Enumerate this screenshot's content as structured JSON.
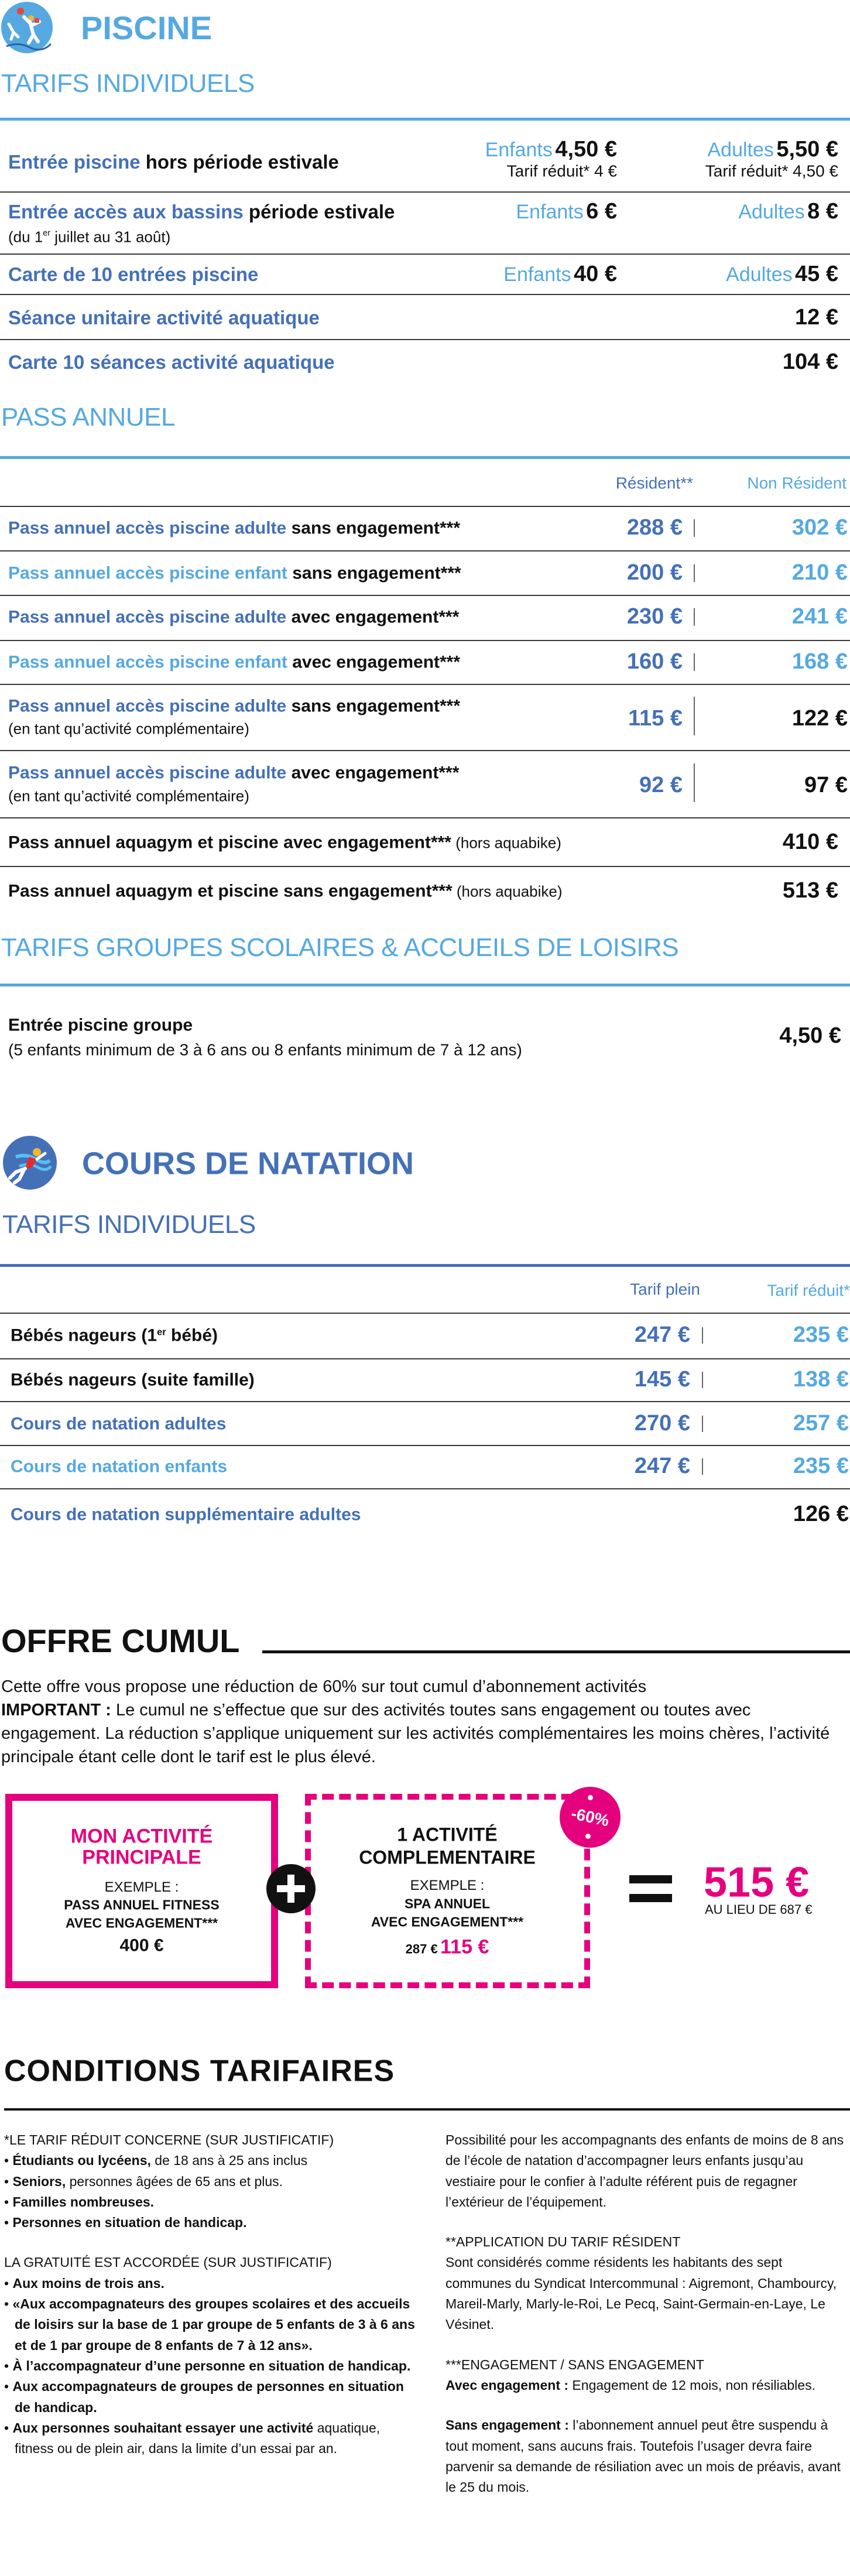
{
  "colors": {
    "dark_blue": "#4470b7",
    "light_blue": "#55a9e0",
    "pink": "#e5007e",
    "text": "#111111"
  },
  "piscine": {
    "icon": "water-polo-player-icon",
    "title": "PISCINE",
    "individuels": {
      "title": "TARIFS INDIVIDUELS",
      "rows": [
        {
          "label_blue": "Entrée piscine",
          "label_black": " hors période estivale",
          "enfants_label": "Enfants",
          "enfants_price": "4,50 €",
          "enfants_reduit": "Tarif réduit* 4 €",
          "adultes_label": "Adultes",
          "adultes_price": "5,50 €",
          "adultes_reduit": "Tarif réduit* 4,50 €"
        },
        {
          "label_blue": "Entrée accès aux bassins",
          "label_black": " période estivale",
          "sub_pre": "(du 1",
          "sub_sup": "er",
          "sub_post": " juillet au 31 août)",
          "enfants_label": "Enfants",
          "enfants_price": "6 €",
          "adultes_label": "Adultes",
          "adultes_price": "8 €"
        },
        {
          "label_blue": "Carte de 10 entrées piscine",
          "enfants_label": "Enfants",
          "enfants_price": "40 €",
          "adultes_label": "Adultes",
          "adultes_price": "45 €"
        },
        {
          "label_blue": "Séance unitaire activité aquatique",
          "price": "12 €"
        },
        {
          "label_blue": "Carte 10 séances activité aquatique",
          "price": "104 €"
        }
      ]
    },
    "pass": {
      "title": "PASS ANNUEL",
      "col_resident": "Résident**",
      "col_non_resident": "Non Résident",
      "rows": [
        {
          "label_blue": "Pass annuel accès piscine adulte",
          "label_black": " sans engagement***",
          "resident": "288 €",
          "non_resident": "302 €"
        },
        {
          "label_blue": "Pass annuel accès piscine enfant",
          "label_black": " sans engagement***",
          "resident": "200 €",
          "non_resident": "210 €"
        },
        {
          "label_blue": "Pass annuel accès piscine adulte",
          "label_black": " avec engagement***",
          "resident": "230 €",
          "non_resident": "241 €"
        },
        {
          "label_blue": "Pass annuel accès piscine enfant",
          "label_black": " avec engagement***",
          "resident": "160 €",
          "non_resident": "168 €"
        },
        {
          "label_blue": "Pass annuel accès piscine adulte",
          "label_black": " sans engagement***",
          "sub": "(en tant qu’activité complémentaire)",
          "resident": "115 €",
          "non_resident": "122 €"
        },
        {
          "label_blue": "Pass annuel accès piscine adulte",
          "label_black": " avec engagement***",
          "sub": "(en tant qu’activité complémentaire)",
          "resident": "92 €",
          "non_resident": "97 €"
        },
        {
          "label_black": "Pass annuel aquagym et piscine avec engagement***",
          "note": " (hors aquabike)",
          "price": "410 €"
        },
        {
          "label_black": "Pass annuel aquagym et piscine sans engagement***",
          "note": " (hors aquabike)",
          "price": "513 €"
        }
      ]
    },
    "groupes": {
      "title": "TARIFS GROUPES SCOLAIRES & ACCUEILS DE LOISIRS",
      "label": "Entrée piscine groupe",
      "sub": "(5 enfants minimum de 3 à 6 ans ou 8 enfants minimum de 7 à 12 ans)",
      "price": "4,50 €"
    }
  },
  "natation": {
    "icon": "swimmer-icon",
    "title": "COURS DE NATATION",
    "subtitle": "TARIFS INDIVIDUELS",
    "col_plein": "Tarif plein",
    "col_reduit": "Tarif réduit*",
    "rows": [
      {
        "label_pre": "Bébés nageurs (1",
        "label_sup": "er",
        "label_post": " bébé)",
        "plein": "247 €",
        "reduit": "235 €"
      },
      {
        "label": "Bébés nageurs (suite famille)",
        "plein": "145 €",
        "reduit": "138 €"
      },
      {
        "label": "Cours de natation adultes",
        "plein": "270 €",
        "reduit": "257 €"
      },
      {
        "label": "Cours de natation enfants",
        "plein": "247 €",
        "reduit": "235 €"
      },
      {
        "label": "Cours de natation supplémentaire adultes",
        "price": "126 €"
      }
    ]
  },
  "offre": {
    "title": "OFFRE CUMUL",
    "intro": "Cette offre vous propose une réduction de 60% sur tout cumul d’abonnement activités",
    "important_label": "IMPORTANT :",
    "important_text": " Le cumul ne s’effectue que sur des activités toutes sans engagement ou toutes avec engagement. La réduction s’applique uniquement sur les activités complémentaires les moins chères, l’activité principale étant celle dont le tarif est le plus élevé.",
    "principale": {
      "title1": "MON ACTIVITÉ",
      "title2": "PRINCIPALE",
      "exemple": "EXEMPLE :",
      "line1": "PASS ANNUEL FITNESS",
      "line2": "AVEC ENGAGEMENT***",
      "price": "400 €"
    },
    "complementaire": {
      "title1": "1 ACTIVITÉ",
      "title2": "COMPLEMENTAIRE",
      "exemple": "EXEMPLE :",
      "line1": "SPA ANNUEL",
      "line2": "AVEC ENGAGEMENT***",
      "old_price": "287 €",
      "new_price": "115 €"
    },
    "badge": "-60%",
    "total": "515 €",
    "au_lieu": "AU LIEU DE 687 €"
  },
  "conditions": {
    "title": "CONDITIONS TARIFAIRES",
    "reduit_heading": "*LE TARIF RÉDUIT CONCERNE (SUR JUSTIFICATIF)",
    "reduit_items": [
      {
        "bold": "Étudiants ou lycéens,",
        "text": " de 18 ans à 25 ans inclus"
      },
      {
        "bold": "Seniors,",
        "text": " personnes âgées de 65 ans et plus."
      },
      {
        "bold": "Familles nombreuses.",
        "text": ""
      },
      {
        "bold": "Personnes en situation de handicap.",
        "text": ""
      }
    ],
    "gratuite_heading": "LA GRATUITÉ EST ACCORDÉE (SUR JUSTIFICATIF)",
    "gratuite_items": [
      {
        "bold": "Aux moins de trois ans.",
        "text": ""
      },
      {
        "bold": "«Aux accompagnateurs des groupes scolaires et des accueils de loisirs sur la base de 1 par groupe de 5 enfants de 3 à 6 ans et de 1 par groupe de 8 enfants de 7 à 12 ans».",
        "text": ""
      },
      {
        "bold": "À l’accompagnateur d’une personne en situation de handicap.",
        "text": ""
      },
      {
        "bold": "Aux accompagnateurs de groupes de personnes en situation de handicap.",
        "text": ""
      },
      {
        "bold": "Aux personnes souhaitant essayer une activité",
        "text": " aquatique, fitness ou de plein air, dans la limite d’un essai par an."
      }
    ],
    "accompagnants": "Possibilité pour les accompagnants des enfants de moins de 8 ans de l’école de natation d’accompagner leurs enfants jusqu’au vestiaire pour le confier à l’adulte référent puis de regagner l’extérieur de l’équipement.",
    "resident_heading": "**APPLICATION DU TARIF RÉSIDENT",
    "resident_text": "Sont considérés comme résidents les habitants des sept communes du Syndicat Intercommunal : Aigremont, Chambourcy, Mareil-Marly, Marly-le-Roi, Le Pecq, Saint-Germain-en-Laye, Le Vésinet.",
    "engagement_heading": "***ENGAGEMENT / SANS ENGAGEMENT",
    "avec_label": "Avec engagement :",
    "avec_text": "  Engagement de 12 mois, non résiliables.",
    "sans_label": "Sans engagement :",
    "sans_text": "  l’abonnement annuel peut être suspendu à tout moment, sans aucuns frais. Toutefois l’usager devra faire parvenir sa demande de résiliation avec un mois de préavis, avant le 25 du mois."
  }
}
